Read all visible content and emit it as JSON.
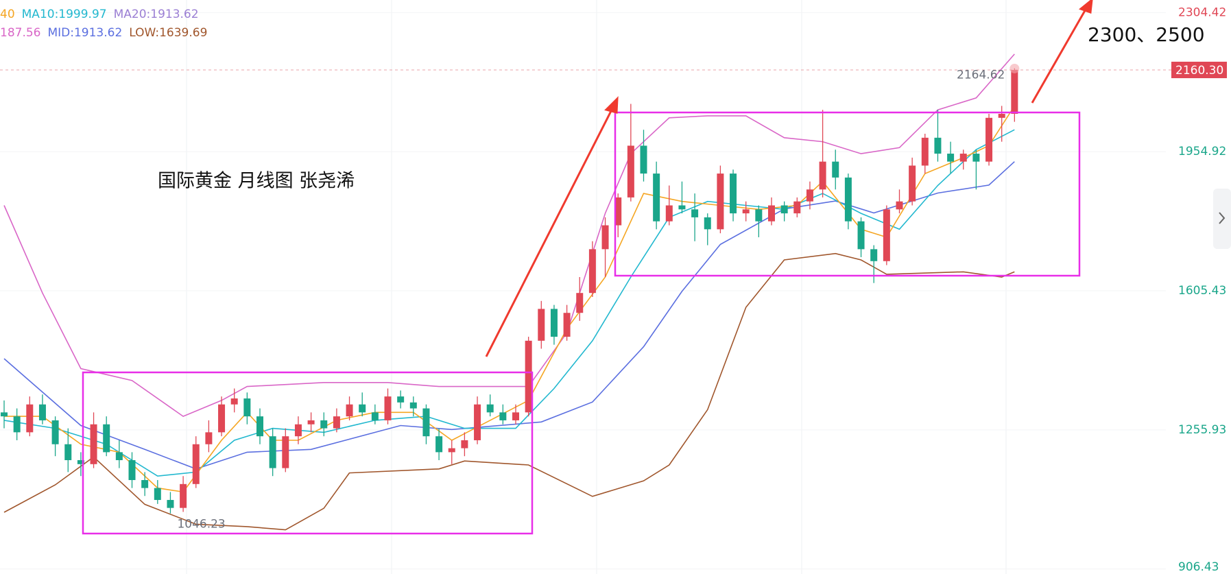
{
  "chart_data": {
    "type": "candlestick",
    "title": "国际黄金  月线图  张尧浠",
    "annotation": "2300、2500",
    "legend": [
      {
        "text": "40",
        "color": "#f5a623"
      },
      {
        "text": "MA10:1999.97",
        "color": "#22b8cf"
      },
      {
        "text": "MA20:1913.62",
        "color": "#9b7fd4"
      },
      {
        "text": "187.56",
        "color": "#d966c7"
      },
      {
        "text": "MID:1913.62",
        "color": "#5b6fe0"
      },
      {
        "text": "LOW:1639.69",
        "color": "#a0562c"
      }
    ],
    "high_label": "2164.62",
    "low_label": "1046.23",
    "last_price": {
      "value": 2160.3,
      "label": "2160.30"
    },
    "ylim": [
      894,
      2336
    ],
    "yticks": [
      2304.42,
      1954.92,
      1605.43,
      1255.93,
      906.43
    ],
    "up_color": "#e04755",
    "down_color": "#1aa68a",
    "ohlc": [
      [
        1300,
        1330,
        1260,
        1290
      ],
      [
        1290,
        1310,
        1230,
        1250
      ],
      [
        1250,
        1340,
        1240,
        1320
      ],
      [
        1320,
        1345,
        1270,
        1280
      ],
      [
        1280,
        1290,
        1190,
        1220
      ],
      [
        1220,
        1260,
        1150,
        1180
      ],
      [
        1180,
        1200,
        1140,
        1170
      ],
      [
        1170,
        1300,
        1160,
        1270
      ],
      [
        1270,
        1290,
        1190,
        1200
      ],
      [
        1200,
        1230,
        1160,
        1180
      ],
      [
        1180,
        1200,
        1110,
        1130
      ],
      [
        1130,
        1150,
        1090,
        1110
      ],
      [
        1110,
        1130,
        1070,
        1080
      ],
      [
        1080,
        1100,
        1046.23,
        1060
      ],
      [
        1060,
        1140,
        1050,
        1120
      ],
      [
        1120,
        1240,
        1110,
        1220
      ],
      [
        1220,
        1280,
        1200,
        1250
      ],
      [
        1250,
        1340,
        1240,
        1320
      ],
      [
        1320,
        1360,
        1300,
        1335
      ],
      [
        1335,
        1350,
        1270,
        1290
      ],
      [
        1290,
        1310,
        1220,
        1240
      ],
      [
        1240,
        1260,
        1140,
        1160
      ],
      [
        1160,
        1260,
        1150,
        1240
      ],
      [
        1240,
        1290,
        1220,
        1270
      ],
      [
        1270,
        1300,
        1250,
        1280
      ],
      [
        1280,
        1300,
        1240,
        1260
      ],
      [
        1260,
        1310,
        1250,
        1290
      ],
      [
        1290,
        1340,
        1280,
        1320
      ],
      [
        1320,
        1350,
        1290,
        1300
      ],
      [
        1300,
        1320,
        1270,
        1280
      ],
      [
        1280,
        1360,
        1270,
        1340
      ],
      [
        1340,
        1355,
        1310,
        1325
      ],
      [
        1325,
        1340,
        1290,
        1310
      ],
      [
        1310,
        1320,
        1220,
        1240
      ],
      [
        1240,
        1260,
        1180,
        1200
      ],
      [
        1200,
        1230,
        1170,
        1210
      ],
      [
        1210,
        1250,
        1190,
        1230
      ],
      [
        1230,
        1340,
        1220,
        1320
      ],
      [
        1320,
        1345,
        1290,
        1300
      ],
      [
        1300,
        1320,
        1270,
        1280
      ],
      [
        1280,
        1320,
        1270,
        1300
      ],
      [
        1300,
        1490,
        1290,
        1480
      ],
      [
        1480,
        1580,
        1460,
        1560
      ],
      [
        1560,
        1570,
        1470,
        1490
      ],
      [
        1490,
        1570,
        1480,
        1550
      ],
      [
        1550,
        1640,
        1530,
        1600
      ],
      [
        1600,
        1730,
        1590,
        1710
      ],
      [
        1710,
        1790,
        1640,
        1770
      ],
      [
        1770,
        1850,
        1740,
        1840
      ],
      [
        1840,
        2075,
        1830,
        1970
      ],
      [
        1970,
        2010,
        1880,
        1900
      ],
      [
        1900,
        1930,
        1760,
        1780
      ],
      [
        1780,
        1870,
        1770,
        1820
      ],
      [
        1820,
        1880,
        1800,
        1810
      ],
      [
        1810,
        1850,
        1730,
        1790
      ],
      [
        1790,
        1800,
        1720,
        1760
      ],
      [
        1760,
        1920,
        1750,
        1900
      ],
      [
        1900,
        1910,
        1780,
        1800
      ],
      [
        1800,
        1830,
        1780,
        1810
      ],
      [
        1810,
        1820,
        1740,
        1780
      ],
      [
        1780,
        1840,
        1770,
        1820
      ],
      [
        1820,
        1830,
        1780,
        1800
      ],
      [
        1800,
        1840,
        1790,
        1830
      ],
      [
        1830,
        1880,
        1810,
        1860
      ],
      [
        1860,
        2060,
        1840,
        1930
      ],
      [
        1930,
        1960,
        1860,
        1890
      ],
      [
        1890,
        1900,
        1760,
        1780
      ],
      [
        1780,
        1790,
        1690,
        1710
      ],
      [
        1710,
        1720,
        1625,
        1680
      ],
      [
        1680,
        1820,
        1670,
        1810
      ],
      [
        1810,
        1860,
        1800,
        1830
      ],
      [
        1830,
        1940,
        1820,
        1920
      ],
      [
        1920,
        2000,
        1900,
        1990
      ],
      [
        1990,
        2060,
        1930,
        1950
      ],
      [
        1950,
        1980,
        1900,
        1930
      ],
      [
        1930,
        1960,
        1910,
        1950
      ],
      [
        1950,
        1960,
        1860,
        1930
      ],
      [
        1930,
        2050,
        1920,
        2040
      ],
      [
        2040,
        2070,
        1980,
        2050
      ],
      [
        2050,
        2164.62,
        2030,
        2160.3
      ]
    ],
    "lines": [
      {
        "color": "#d966c7",
        "x": [
          0,
          3,
          6,
          10,
          14,
          17,
          19,
          25,
          30,
          34,
          38,
          41,
          44,
          47,
          49,
          52,
          55,
          58,
          61,
          64,
          67,
          70,
          73,
          76,
          79
        ],
        "values": [
          1820,
          1600,
          1410,
          1380,
          1290,
          1330,
          1365,
          1375,
          1375,
          1365,
          1365,
          1365,
          1500,
          1800,
          1950,
          2040,
          2045,
          2045,
          1990,
          1980,
          1950,
          1965,
          2060,
          2090,
          2200
        ]
      },
      {
        "color": "#5b6fe0",
        "x": [
          0,
          6,
          11,
          15,
          19,
          24,
          31,
          35,
          42,
          46,
          50,
          53,
          56,
          61,
          65,
          68,
          73,
          77,
          79
        ],
        "values": [
          1435,
          1267,
          1207,
          1158,
          1200,
          1207,
          1267,
          1257,
          1276,
          1326,
          1465,
          1604,
          1722,
          1811,
          1831,
          1801,
          1851,
          1871,
          1930
        ]
      },
      {
        "color": "#a0562c",
        "x": [
          0,
          4,
          7,
          11,
          15,
          19,
          22,
          25,
          27,
          34,
          36,
          41,
          46,
          50,
          52,
          55,
          58,
          61,
          65,
          67,
          69,
          75,
          78,
          79
        ],
        "values": [
          1049,
          1118,
          1188,
          1069,
          1019,
          1013,
          1005,
          1059,
          1148,
          1158,
          1178,
          1168,
          1089,
          1128,
          1168,
          1307,
          1564,
          1683,
          1699,
          1683,
          1647,
          1653,
          1640,
          1653
        ]
      },
      {
        "color": "#22b8cf",
        "x": [
          0,
          4,
          8,
          12,
          15,
          18,
          21,
          25,
          29,
          33,
          36,
          40,
          43,
          46,
          49,
          52,
          55,
          58,
          61,
          64,
          67,
          70,
          73,
          76,
          79
        ],
        "values": [
          1280,
          1260,
          1220,
          1140,
          1150,
          1230,
          1260,
          1250,
          1280,
          1290,
          1260,
          1260,
          1360,
          1480,
          1640,
          1790,
          1830,
          1820,
          1810,
          1850,
          1800,
          1760,
          1870,
          1960,
          2010
        ]
      },
      {
        "color": "#f5a623",
        "x": [
          0,
          3,
          6,
          9,
          12,
          14,
          17,
          19,
          21,
          23,
          26,
          29,
          32,
          35,
          38,
          41,
          44,
          47,
          50,
          53,
          56,
          59,
          62,
          64,
          67,
          69,
          72,
          75,
          77,
          79
        ],
        "values": [
          1290,
          1290,
          1220,
          1200,
          1110,
          1100,
          1230,
          1300,
          1230,
          1230,
          1280,
          1300,
          1300,
          1230,
          1280,
          1330,
          1510,
          1640,
          1850,
          1830,
          1820,
          1810,
          1820,
          1880,
          1760,
          1740,
          1900,
          1940,
          1970,
          2070
        ]
      }
    ]
  }
}
